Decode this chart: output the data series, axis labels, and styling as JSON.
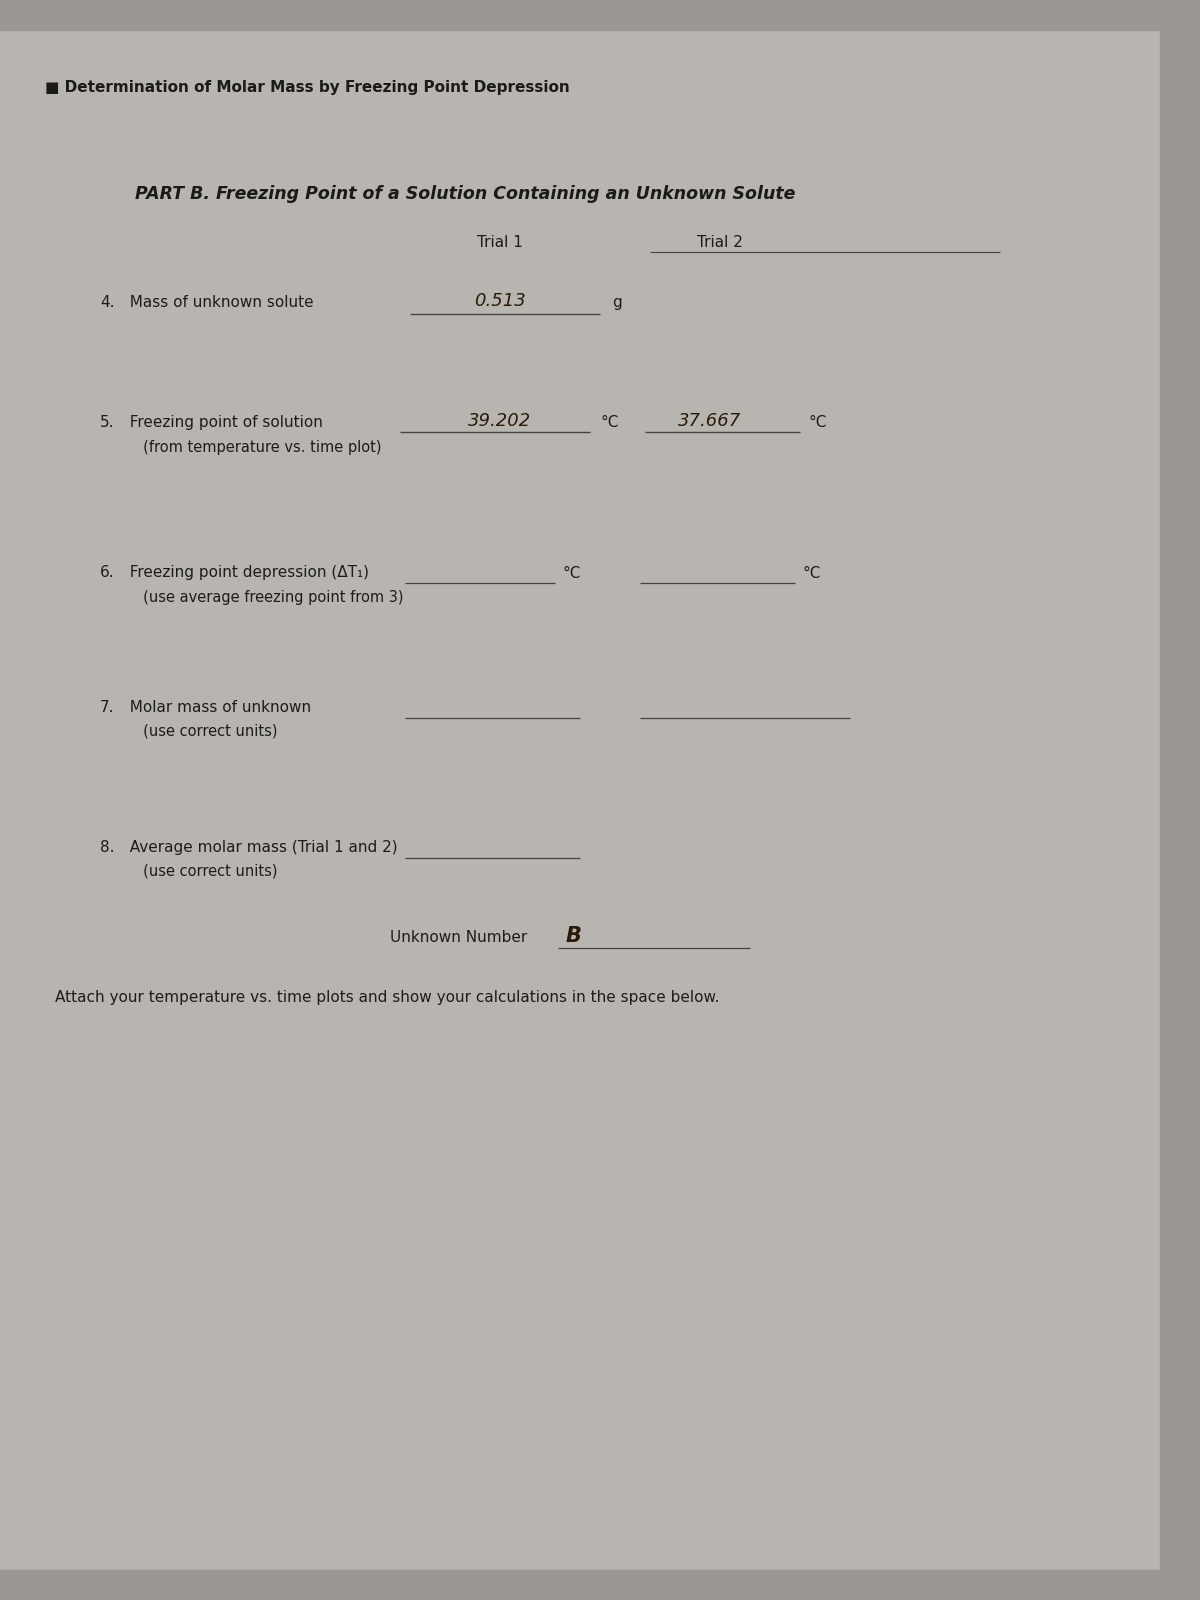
{
  "bg_color": "#b8b5b0",
  "paper_color": "#d6d3cc",
  "header_text": "■ Determination of Molar Mass by Freezing Point Depression",
  "part_b_title": "PART B. Freezing Point of a Solution Containing an Unknown Solute",
  "trial1_label": "Trial 1",
  "trial2_label": "Trial 2",
  "item4_num": "4.",
  "item4_label": "  Mass of unknown solute",
  "item4_trial1_value": "0.513",
  "item4_unit": "g",
  "item5_num": "5.",
  "item5_label": "  Freezing point of solution",
  "item5_sublabel": "     (from temperature vs. time plot)",
  "item5_trial1_value": "39.202",
  "item5_trial1_unit": "°C",
  "item5_trial2_value": "37.667",
  "item5_trial2_unit": "°C",
  "item6_num": "6.",
  "item6_label": "  Freezing point depression (ΔT₁)",
  "item6_sublabel": "     (use average freezing point from 3)",
  "item6_trial1_unit": "°C",
  "item6_trial2_unit": "°C",
  "item7_num": "7.",
  "item7_label": "  Molar mass of unknown",
  "item7_sublabel": "     (use correct units)",
  "item8_num": "8.",
  "item8_label": "  Average molar mass (Trial 1 and 2)",
  "item8_sublabel": "     (use correct units)",
  "unknown_label": "Unknown Number",
  "unknown_value": "B",
  "attach_text": "Attach your temperature vs. time plots and show your calculations in the space below.",
  "handwritten_color": "#2a1a08",
  "print_color": "#1c1c1c",
  "line_color": "#444444",
  "fig_width": 12.0,
  "fig_height": 16.0,
  "dpi": 100
}
